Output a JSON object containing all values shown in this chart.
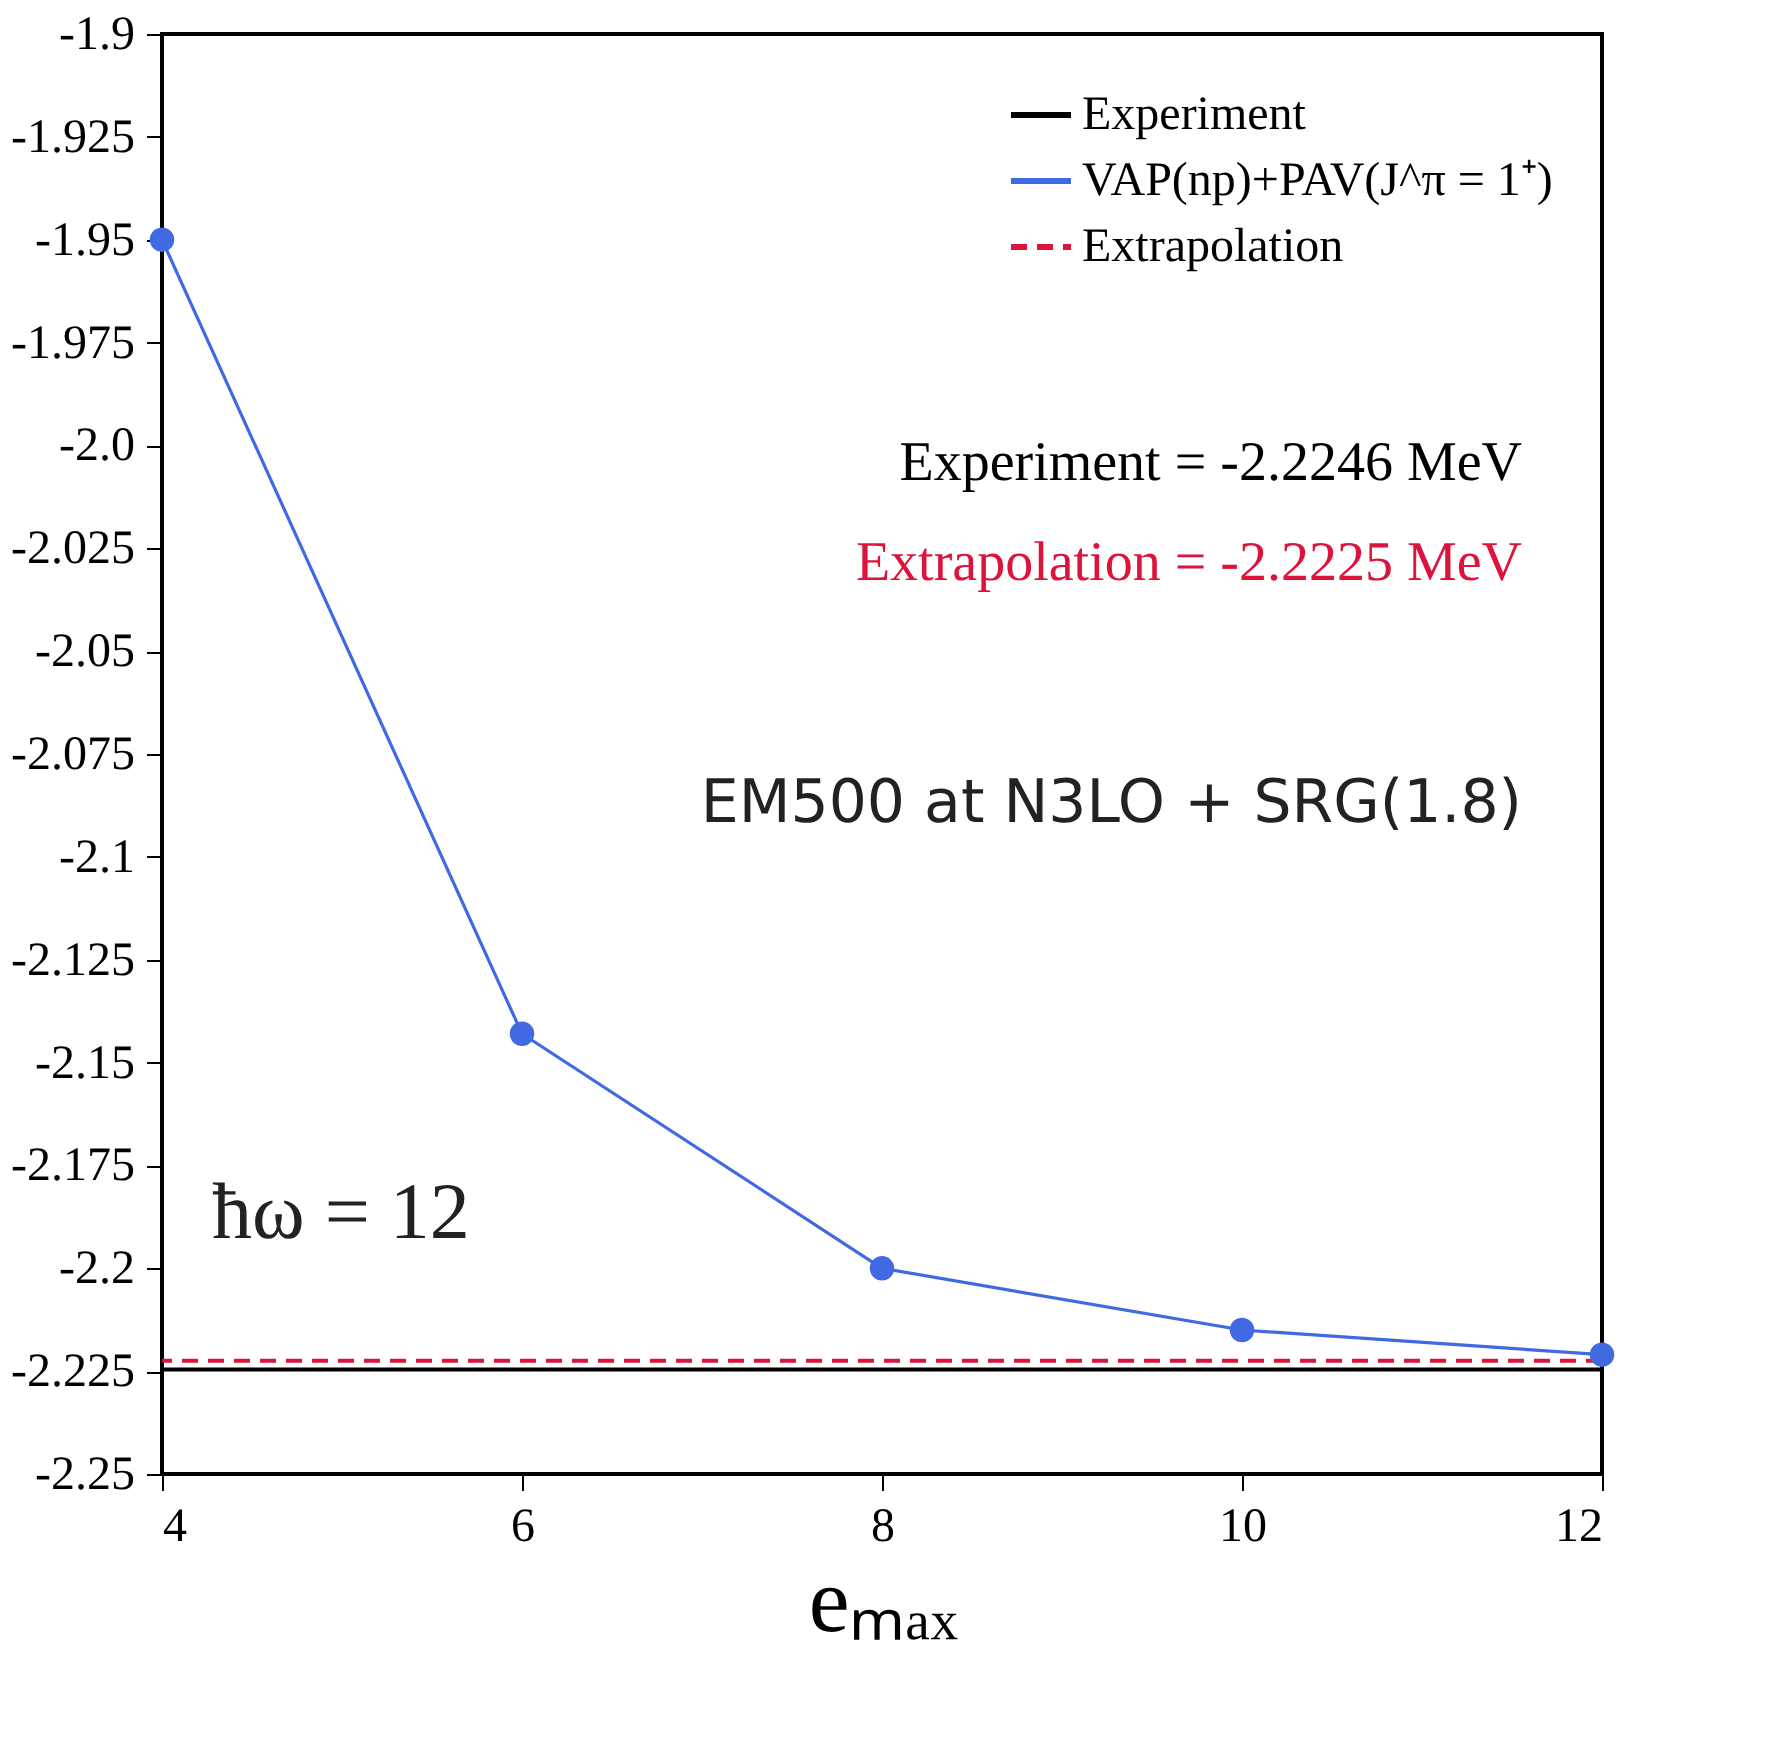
{
  "chart_data": {
    "type": "line",
    "xlabel": "eₘₐₓ",
    "x": [
      4,
      6,
      8,
      10,
      12
    ],
    "series": [
      {
        "name": "VAP(np)+PAV(J^π = 1⁺)",
        "color": "#4169e1",
        "values": [
          -1.95,
          -2.143,
          -2.2,
          -2.215,
          -2.221
        ]
      }
    ],
    "ref_lines": [
      {
        "axis": "y",
        "value": -2.2246,
        "label": "Experiment",
        "color": "#000000",
        "line_style": "solid"
      },
      {
        "axis": "y",
        "value": -2.2225,
        "label": "Extrapolation",
        "color": "#dc143c",
        "line_style": "dashed"
      }
    ],
    "annotations": [
      "Experiment = -2.2246 MeV",
      "Extrapolation = -2.2225 MeV",
      "EM500 at N3LO + SRG(1.8)",
      "ħω = 12"
    ],
    "xlim": [
      4,
      12
    ],
    "xticks": [
      4,
      6,
      8,
      10,
      12
    ],
    "ylim": [
      -2.25,
      -1.9
    ],
    "yticks": [
      -2.25,
      -2.225,
      -2.2,
      -2.175,
      -2.15,
      -2.125,
      -2.1,
      -2.075,
      -2.05,
      -2.025,
      {
        "value": -2.0,
        "label": "-2.0"
      },
      -1.975,
      -1.95,
      -1.925,
      -1.9
    ],
    "grid": false,
    "legend": "top right",
    "marker": "circle",
    "line_style": "solid"
  }
}
